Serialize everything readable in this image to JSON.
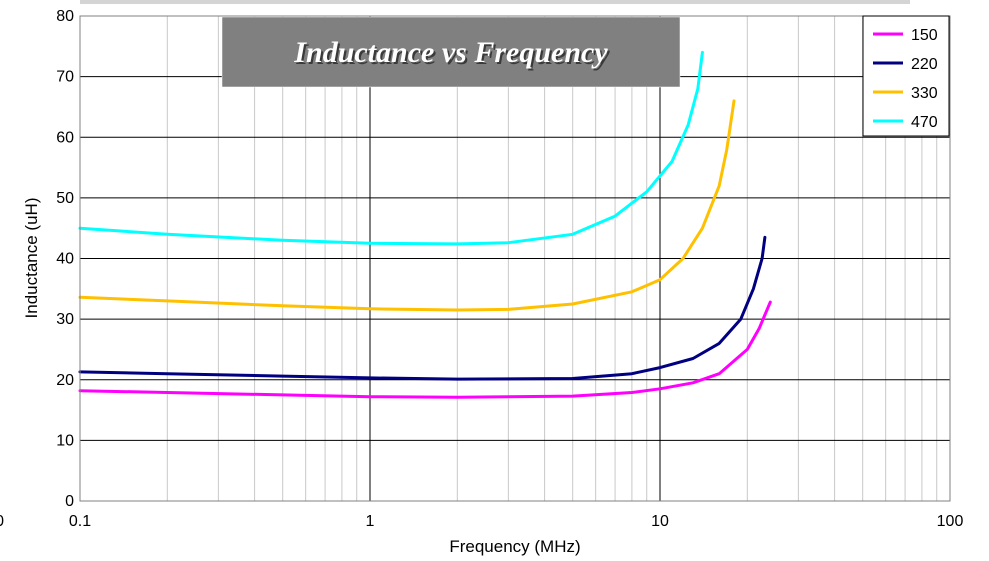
{
  "chart_data": {
    "type": "line",
    "title": "Inductance vs Frequency",
    "xlabel": "Frequency (MHz)",
    "ylabel": "Inductance (uH)",
    "x_scale": "log",
    "xlim": [
      0.1,
      100
    ],
    "ylim": [
      0,
      80
    ],
    "x_ticks": [
      0.1,
      1,
      10,
      100
    ],
    "x_tick_labels": [
      "0.1",
      "1",
      "10",
      "100"
    ],
    "y_ticks": [
      0,
      10,
      20,
      30,
      40,
      50,
      60,
      70,
      80
    ],
    "y_tick_labels": [
      "0",
      "10",
      "20",
      "30",
      "40",
      "50",
      "60",
      "70",
      "80"
    ],
    "edge_label": "0",
    "grid": true,
    "legend_position": "top-right",
    "series": [
      {
        "name": "150",
        "color": "#ff00ff",
        "points": [
          [
            0.1,
            18.2
          ],
          [
            0.2,
            17.9
          ],
          [
            0.5,
            17.5
          ],
          [
            1,
            17.2
          ],
          [
            2,
            17.1
          ],
          [
            5,
            17.3
          ],
          [
            8,
            17.9
          ],
          [
            10,
            18.5
          ],
          [
            13,
            19.5
          ],
          [
            16,
            21
          ],
          [
            20,
            25
          ],
          [
            22,
            28.5
          ],
          [
            24,
            32.8
          ]
        ]
      },
      {
        "name": "220",
        "color": "#000080",
        "points": [
          [
            0.1,
            21.3
          ],
          [
            0.2,
            21.0
          ],
          [
            0.5,
            20.6
          ],
          [
            1,
            20.3
          ],
          [
            2,
            20.1
          ],
          [
            5,
            20.2
          ],
          [
            8,
            21.0
          ],
          [
            10,
            22.0
          ],
          [
            13,
            23.5
          ],
          [
            16,
            26
          ],
          [
            19,
            30
          ],
          [
            21,
            35
          ],
          [
            22.5,
            40
          ],
          [
            23,
            43.5
          ]
        ]
      },
      {
        "name": "330",
        "color": "#ffc000",
        "points": [
          [
            0.1,
            33.6
          ],
          [
            0.2,
            33.0
          ],
          [
            0.5,
            32.2
          ],
          [
            1,
            31.7
          ],
          [
            2,
            31.5
          ],
          [
            3,
            31.6
          ],
          [
            5,
            32.5
          ],
          [
            8,
            34.5
          ],
          [
            10,
            36.5
          ],
          [
            12,
            40
          ],
          [
            14,
            45
          ],
          [
            16,
            52
          ],
          [
            17,
            58
          ],
          [
            18,
            66
          ]
        ]
      },
      {
        "name": "470",
        "color": "#00ffff",
        "points": [
          [
            0.1,
            45.0
          ],
          [
            0.2,
            44.0
          ],
          [
            0.5,
            43.0
          ],
          [
            1,
            42.5
          ],
          [
            2,
            42.4
          ],
          [
            3,
            42.6
          ],
          [
            5,
            44.0
          ],
          [
            7,
            47.0
          ],
          [
            9,
            51.0
          ],
          [
            11,
            56.0
          ],
          [
            12.5,
            62.0
          ],
          [
            13.5,
            68.0
          ],
          [
            14,
            74.0
          ]
        ]
      }
    ]
  }
}
